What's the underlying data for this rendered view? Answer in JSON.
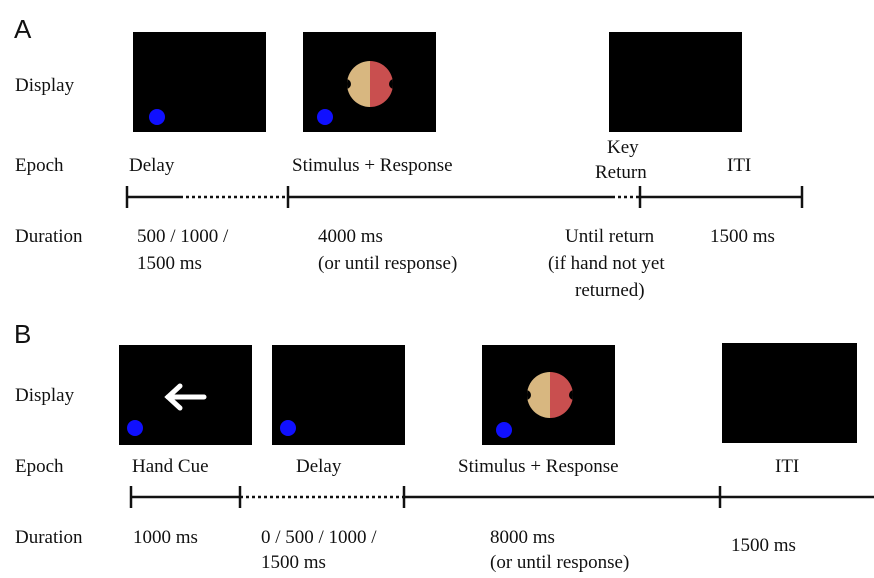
{
  "panels": [
    {
      "label": "A",
      "row_labels": {
        "display": "Display",
        "epoch": "Epoch",
        "duration": "Duration"
      },
      "epochs": [
        {
          "name": [
            "Delay"
          ],
          "duration": [
            "500 / 1000 /",
            "1500 ms"
          ]
        },
        {
          "name": [
            "Stimulus + Response"
          ],
          "duration": [
            "4000 ms",
            "(or until response)"
          ]
        },
        {
          "name": [
            "Key",
            "Return"
          ],
          "duration": [
            "Until return",
            "(if hand not yet",
            "returned)"
          ]
        },
        {
          "name": [
            "ITI"
          ],
          "duration": [
            "1500 ms"
          ]
        }
      ]
    },
    {
      "label": "B",
      "row_labels": {
        "display": "Display",
        "epoch": "Epoch",
        "duration": "Duration"
      },
      "epochs": [
        {
          "name": [
            "Hand Cue"
          ],
          "duration": [
            "1000 ms"
          ]
        },
        {
          "name": [
            "Delay"
          ],
          "duration": [
            "0 / 500 / 1000 /",
            "1500 ms"
          ]
        },
        {
          "name": [
            "Stimulus + Response"
          ],
          "duration": [
            "8000 ms",
            "(or until response)"
          ]
        },
        {
          "name": [
            "ITI"
          ],
          "duration": [
            "1500 ms"
          ]
        }
      ]
    }
  ]
}
